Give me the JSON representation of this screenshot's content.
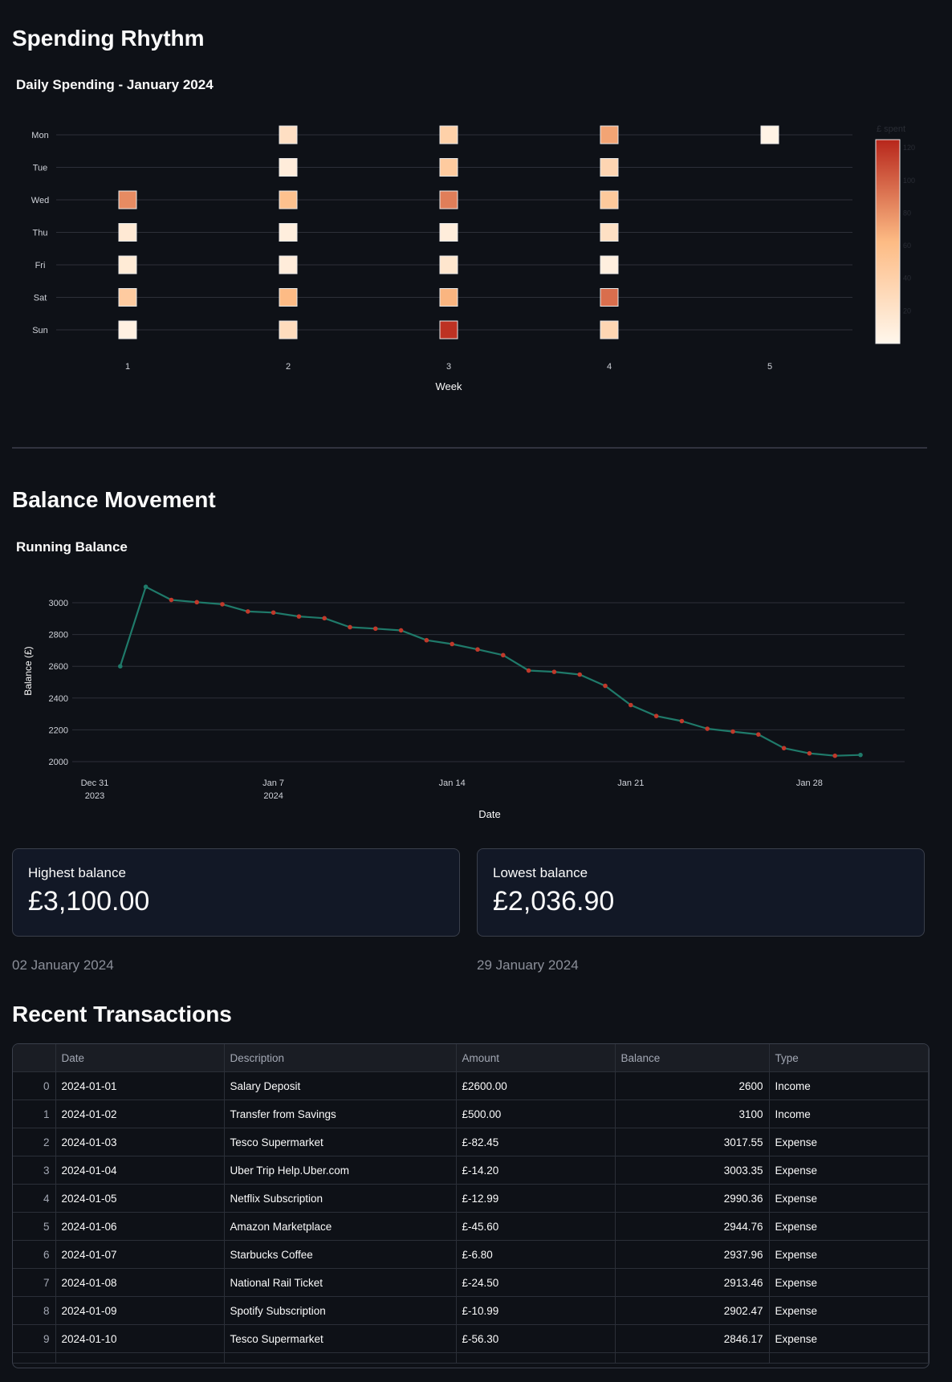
{
  "sections": {
    "spending_title": "Spending Rhythm",
    "balance_title": "Balance Movement",
    "transactions_title": "Recent Transactions"
  },
  "heatmap": {
    "title": "Daily Spending - January 2024",
    "xlabel": "Week",
    "colorbar_label": "£ spent",
    "colorbar_ticks": [
      20,
      40,
      60,
      80,
      100,
      120
    ],
    "days": [
      "Mon",
      "Tue",
      "Wed",
      "Thu",
      "Fri",
      "Sat",
      "Sun"
    ],
    "weeks": [
      "1",
      "2",
      "3",
      "4",
      "5"
    ],
    "colors": {
      "low": "#fff7ec",
      "mid": "#fdbb84",
      "high": "#b7261b"
    }
  },
  "line_chart": {
    "title": "Running Balance",
    "xlabel": "Date",
    "ylabel": "Balance (£)",
    "y_ticks": [
      2000,
      2200,
      2400,
      2600,
      2800,
      3000
    ],
    "x_ticks": [
      {
        "date": "2023-12-31",
        "line1": "Dec 31",
        "line2": "2023"
      },
      {
        "date": "2024-01-07",
        "line1": "Jan 7",
        "line2": "2024"
      },
      {
        "date": "2024-01-14",
        "line1": "Jan 14",
        "line2": ""
      },
      {
        "date": "2024-01-21",
        "line1": "Jan 21",
        "line2": ""
      },
      {
        "date": "2024-01-28",
        "line1": "Jan 28",
        "line2": ""
      }
    ],
    "colors": {
      "line": "#1f7a6a",
      "marker": "#c0392b",
      "endpoint": "#1f7a6a"
    }
  },
  "chart_data": [
    {
      "type": "heatmap",
      "title": "Daily Spending - January 2024",
      "xlabel": "Week",
      "ylabel": "",
      "x": [
        "1",
        "2",
        "3",
        "4",
        "5"
      ],
      "y": [
        "Mon",
        "Tue",
        "Wed",
        "Thu",
        "Fri",
        "Sat",
        "Sun"
      ],
      "colorbar": {
        "label": "£ spent",
        "range": [
          0,
          125
        ]
      },
      "cells": [
        {
          "week": 1,
          "day": "Wed",
          "value": 82.45
        },
        {
          "week": 1,
          "day": "Thu",
          "value": 14.2
        },
        {
          "week": 1,
          "day": "Fri",
          "value": 12.99
        },
        {
          "week": 1,
          "day": "Sat",
          "value": 45.6
        },
        {
          "week": 1,
          "day": "Sun",
          "value": 6.8
        },
        {
          "week": 2,
          "day": "Mon",
          "value": 24.5
        },
        {
          "week": 2,
          "day": "Tue",
          "value": 10.99
        },
        {
          "week": 2,
          "day": "Wed",
          "value": 56.3
        },
        {
          "week": 2,
          "day": "Thu",
          "value": 9.0
        },
        {
          "week": 2,
          "day": "Fri",
          "value": 11.0
        },
        {
          "week": 2,
          "day": "Sat",
          "value": 62.0
        },
        {
          "week": 2,
          "day": "Sun",
          "value": 28.0
        },
        {
          "week": 3,
          "day": "Mon",
          "value": 40.0
        },
        {
          "week": 3,
          "day": "Tue",
          "value": 46.0
        },
        {
          "week": 3,
          "day": "Wed",
          "value": 88.0
        },
        {
          "week": 3,
          "day": "Thu",
          "value": 10.0
        },
        {
          "week": 3,
          "day": "Fri",
          "value": 18.0
        },
        {
          "week": 3,
          "day": "Sat",
          "value": 65.0
        },
        {
          "week": 3,
          "day": "Sun",
          "value": 120.0
        },
        {
          "week": 4,
          "day": "Mon",
          "value": 72.0
        },
        {
          "week": 4,
          "day": "Tue",
          "value": 35.0
        },
        {
          "week": 4,
          "day": "Wed",
          "value": 48.0
        },
        {
          "week": 4,
          "day": "Thu",
          "value": 24.0
        },
        {
          "week": 4,
          "day": "Fri",
          "value": 8.0
        },
        {
          "week": 4,
          "day": "Sat",
          "value": 95.0
        },
        {
          "week": 4,
          "day": "Sun",
          "value": 34.0
        },
        {
          "week": 5,
          "day": "Mon",
          "value": 4.0
        }
      ]
    },
    {
      "type": "line",
      "title": "Running Balance",
      "xlabel": "Date",
      "ylabel": "Balance (£)",
      "ylim": [
        1950,
        3150
      ],
      "series": [
        {
          "x": [
            "2024-01-01",
            "2024-01-02",
            "2024-01-03",
            "2024-01-04",
            "2024-01-05",
            "2024-01-06",
            "2024-01-07",
            "2024-01-08",
            "2024-01-09",
            "2024-01-10",
            "2024-01-11",
            "2024-01-12",
            "2024-01-13",
            "2024-01-14",
            "2024-01-15",
            "2024-01-16",
            "2024-01-17",
            "2024-01-18",
            "2024-01-19",
            "2024-01-20",
            "2024-01-21",
            "2024-01-22",
            "2024-01-23",
            "2024-01-24",
            "2024-01-25",
            "2024-01-26",
            "2024-01-27",
            "2024-01-28",
            "2024-01-29",
            "2024-01-30"
          ],
          "y": [
            2600,
            3100,
            3017.55,
            3003.35,
            2990.36,
            2944.76,
            2937.96,
            2913.46,
            2902.47,
            2846.17,
            2837,
            2826,
            2764,
            2740,
            2706,
            2670,
            2573,
            2565,
            2548,
            2477,
            2356,
            2287,
            2255,
            2207,
            2189,
            2171,
            2085,
            2052,
            2036.9,
            2042
          ]
        }
      ]
    }
  ],
  "metrics": [
    {
      "label": "Highest balance",
      "value": "£3,100.00",
      "caption": "02 January 2024"
    },
    {
      "label": "Lowest balance",
      "value": "£2,036.90",
      "caption": "29 January 2024"
    }
  ],
  "table": {
    "headers": [
      "",
      "Date",
      "Description",
      "Amount",
      "Balance",
      "Type"
    ],
    "rows": [
      [
        "0",
        "2024-01-01",
        "Salary Deposit",
        "£2600.00",
        "2600",
        "Income"
      ],
      [
        "1",
        "2024-01-02",
        "Transfer from Savings",
        "£500.00",
        "3100",
        "Income"
      ],
      [
        "2",
        "2024-01-03",
        "Tesco Supermarket",
        "£-82.45",
        "3017.55",
        "Expense"
      ],
      [
        "3",
        "2024-01-04",
        "Uber Trip Help.Uber.com",
        "£-14.20",
        "3003.35",
        "Expense"
      ],
      [
        "4",
        "2024-01-05",
        "Netflix Subscription",
        "£-12.99",
        "2990.36",
        "Expense"
      ],
      [
        "5",
        "2024-01-06",
        "Amazon Marketplace",
        "£-45.60",
        "2944.76",
        "Expense"
      ],
      [
        "6",
        "2024-01-07",
        "Starbucks Coffee",
        "£-6.80",
        "2937.96",
        "Expense"
      ],
      [
        "7",
        "2024-01-08",
        "National Rail Ticket",
        "£-24.50",
        "2913.46",
        "Expense"
      ],
      [
        "8",
        "2024-01-09",
        "Spotify Subscription",
        "£-10.99",
        "2902.47",
        "Expense"
      ],
      [
        "9",
        "2024-01-10",
        "Tesco Supermarket",
        "£-56.30",
        "2846.17",
        "Expense"
      ]
    ]
  }
}
